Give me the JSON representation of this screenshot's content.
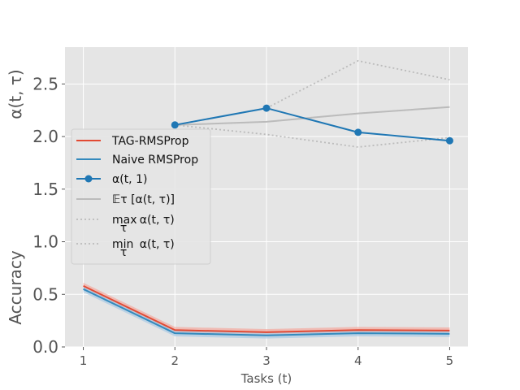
{
  "chart_data": {
    "type": "line",
    "title": "",
    "xlabel": "Tasks (t)",
    "ylabel_top": "α(t, τ)",
    "ylabel_bottom": "Accuracy",
    "x": [
      1,
      2,
      3,
      4,
      5
    ],
    "x_ticks": [
      "1",
      "2",
      "3",
      "4",
      "5"
    ],
    "xlim": [
      0.8,
      5.2
    ],
    "y_ticks": [
      "0.0",
      "0.5",
      "1.0",
      "1.5",
      "2.0",
      "2.5"
    ],
    "ylim": [
      0.0,
      2.85
    ],
    "grid": true,
    "legend_position": "left",
    "series": [
      {
        "name": "TAG-RMSProp",
        "color": "#E24A33",
        "style": "solid",
        "x": [
          1,
          2,
          3,
          4,
          5
        ],
        "values": [
          0.58,
          0.16,
          0.14,
          0.16,
          0.155
        ]
      },
      {
        "name": "Naive RMSProp",
        "color": "#348ABD",
        "style": "solid",
        "x": [
          1,
          2,
          3,
          4,
          5
        ],
        "values": [
          0.55,
          0.13,
          0.11,
          0.13,
          0.125
        ]
      },
      {
        "name": "α(t,1)",
        "color": "#1F77B4",
        "style": "solid-markers",
        "x": [
          2,
          3,
          4,
          5
        ],
        "values": [
          2.11,
          2.27,
          2.04,
          1.96
        ]
      },
      {
        "name": "𝔼τ  [α(t, τ)]",
        "color": "#BBBBBB",
        "style": "solid",
        "x": [
          2,
          3,
          4,
          5
        ],
        "values": [
          2.11,
          2.14,
          2.22,
          2.28
        ]
      },
      {
        "name": "max α(t, τ)",
        "color": "#BBBBBB",
        "style": "dotted",
        "x": [
          2,
          3,
          4,
          5
        ],
        "values": [
          2.11,
          2.27,
          2.72,
          2.54
        ]
      },
      {
        "name": "min α(t, τ)",
        "color": "#BBBBBB",
        "style": "dotted",
        "x": [
          2,
          3,
          4,
          5
        ],
        "values": [
          2.11,
          2.02,
          1.9,
          1.99
        ]
      }
    ],
    "legend": {
      "entries": [
        {
          "label": "TAG-RMSProp",
          "color": "#E24A33",
          "style": "solid"
        },
        {
          "label": "Naive RMSProp",
          "color": "#348ABD",
          "style": "solid"
        },
        {
          "label": "α(t, 1)",
          "color": "#1F77B4",
          "style": "solid-markers"
        },
        {
          "label": "𝔼τ  [α(t, τ)]",
          "color": "#BBBBBB",
          "style": "solid"
        },
        {
          "label": "max",
          "sub": "τ",
          "suffix": "α(t, τ)",
          "color": "#BBBBBB",
          "style": "dotted"
        },
        {
          "label": "min",
          "sub": "τ",
          "suffix": "α(t, τ)",
          "color": "#BBBBBB",
          "style": "dotted"
        }
      ]
    },
    "colors": {
      "plot_background": "#E5E5E5",
      "grid": "#FFFFFF",
      "legend_background": "#E5E5E5",
      "band_red": "#F4A9A0",
      "band_blue": "#A9CBE6"
    }
  }
}
